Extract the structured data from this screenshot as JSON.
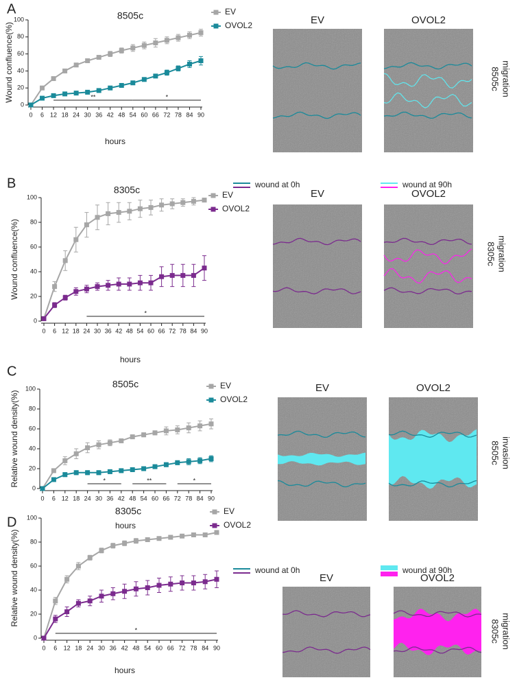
{
  "chart_data": [
    {
      "type": "line",
      "panel": "A",
      "title": "8505c",
      "x_label": "hours",
      "y_label": "Wound confluence(%)",
      "x": [
        0,
        6,
        12,
        18,
        24,
        30,
        36,
        42,
        48,
        54,
        60,
        66,
        72,
        78,
        84,
        90
      ],
      "xlim": [
        0,
        90
      ],
      "xticks": [
        0,
        6,
        12,
        18,
        24,
        30,
        36,
        42,
        48,
        54,
        60,
        66,
        72,
        78,
        84,
        90
      ],
      "ylim": [
        0,
        100
      ],
      "yticks": [
        0,
        20,
        40,
        60,
        80,
        100
      ],
      "series": [
        {
          "name": "EV",
          "color": "#a6a6a6",
          "values": [
            0,
            20,
            31,
            40,
            47,
            52,
            56,
            60,
            64,
            67,
            70,
            73,
            76,
            79,
            82,
            85
          ],
          "errors": [
            0,
            1,
            1,
            1,
            2,
            2,
            2,
            3,
            3,
            4,
            4,
            5,
            4,
            4,
            4,
            4
          ]
        },
        {
          "name": "OVOL2",
          "color": "#1a8a9a",
          "values": [
            0,
            8,
            11,
            13,
            14,
            15,
            17,
            20,
            23,
            26,
            30,
            34,
            38,
            43,
            48,
            52
          ],
          "errors": [
            0,
            1,
            1,
            1,
            1,
            1,
            1,
            1,
            1,
            1,
            2,
            2,
            3,
            3,
            4,
            5
          ]
        }
      ],
      "annotations": [
        {
          "text": "**",
          "x": [
            12,
            54
          ]
        },
        {
          "text": "*",
          "x": [
            54,
            90
          ]
        }
      ],
      "images": {
        "labels": [
          "EV",
          "OVOL2"
        ],
        "label_colors": [
          "#a6a6a6",
          "#1a8a9a"
        ],
        "side_label": [
          "8505c",
          "migration"
        ]
      }
    },
    {
      "type": "line",
      "panel": "B",
      "title": "8305c",
      "x_label": "hours",
      "y_label": "Wound confluence(%)",
      "x": [
        0,
        6,
        12,
        18,
        24,
        30,
        36,
        42,
        48,
        54,
        60,
        66,
        72,
        78,
        84,
        90
      ],
      "xlim": [
        0,
        90
      ],
      "xticks": [
        0,
        6,
        12,
        18,
        24,
        30,
        36,
        42,
        48,
        54,
        60,
        66,
        72,
        78,
        84,
        90
      ],
      "ylim": [
        0,
        100
      ],
      "yticks": [
        0,
        20,
        40,
        60,
        80,
        100
      ],
      "series": [
        {
          "name": "EV",
          "color": "#a6a6a6",
          "values": [
            2,
            28,
            49,
            66,
            78,
            84,
            87,
            88,
            89,
            91,
            92,
            94,
            95,
            96,
            97,
            98
          ],
          "errors": [
            1,
            4,
            8,
            10,
            10,
            10,
            9,
            8,
            7,
            7,
            6,
            5,
            4,
            3,
            3,
            1
          ]
        },
        {
          "name": "OVOL2",
          "color": "#7b2b8e",
          "values": [
            2,
            13,
            19,
            24,
            26,
            28,
            29,
            30,
            30,
            31,
            31,
            36,
            37,
            37,
            37,
            43
          ],
          "errors": [
            1,
            2,
            2,
            3,
            3,
            3,
            4,
            5,
            5,
            6,
            6,
            8,
            9,
            9,
            9,
            10
          ]
        }
      ],
      "annotations": [
        {
          "text": "*",
          "x": [
            24,
            90
          ]
        }
      ],
      "images": {
        "labels": [
          "EV",
          "OVOL2"
        ],
        "label_colors": [
          "#a6a6a6",
          "#7b2b8e"
        ],
        "side_label": [
          "8305c",
          "migration"
        ]
      }
    },
    {
      "type": "line",
      "panel": "C",
      "title": "8505c",
      "x_label": "hours",
      "y_label": "Relative wound density(%)",
      "x": [
        0,
        6,
        12,
        18,
        24,
        30,
        36,
        42,
        48,
        54,
        60,
        66,
        72,
        78,
        84,
        90
      ],
      "xlim": [
        0,
        90
      ],
      "xticks": [
        0,
        6,
        12,
        18,
        24,
        30,
        36,
        42,
        48,
        54,
        60,
        66,
        72,
        78,
        84,
        90
      ],
      "ylim": [
        0,
        100
      ],
      "yticks": [
        0,
        20,
        40,
        60,
        80,
        100
      ],
      "series": [
        {
          "name": "EV",
          "color": "#a6a6a6",
          "values": [
            0,
            18,
            28,
            35,
            41,
            44,
            46,
            48,
            52,
            54,
            56,
            58,
            59,
            61,
            63,
            65
          ],
          "errors": [
            0,
            2,
            4,
            5,
            5,
            4,
            3,
            2,
            2,
            2,
            2,
            4,
            4,
            5,
            5,
            5
          ]
        },
        {
          "name": "OVOL2",
          "color": "#1a8a9a",
          "values": [
            0,
            9,
            14,
            16,
            16,
            16,
            17,
            18,
            19,
            20,
            22,
            24,
            26,
            27,
            28,
            30
          ],
          "errors": [
            0,
            1,
            2,
            2,
            2,
            2,
            2,
            2,
            2,
            2,
            2,
            2,
            2,
            3,
            3,
            3
          ]
        }
      ],
      "annotations": [
        {
          "text": "*",
          "x": [
            24,
            42
          ]
        },
        {
          "text": "**",
          "x": [
            48,
            66
          ]
        },
        {
          "text": "*",
          "x": [
            72,
            90
          ]
        }
      ],
      "images": {
        "labels": [
          "EV",
          "OVOL2"
        ],
        "label_colors": [
          "#a6a6a6",
          "#1a8a9a"
        ],
        "side_label": [
          "8505c",
          "invasion"
        ]
      }
    },
    {
      "type": "line",
      "panel": "D",
      "title": "8305c",
      "x_label": "hours",
      "y_label": "Relative wound density(%)",
      "x": [
        0,
        6,
        12,
        18,
        24,
        30,
        36,
        42,
        48,
        54,
        60,
        66,
        72,
        78,
        84,
        90
      ],
      "xlim": [
        0,
        90
      ],
      "xticks": [
        0,
        6,
        12,
        18,
        24,
        30,
        36,
        42,
        48,
        54,
        60,
        66,
        72,
        78,
        84,
        90
      ],
      "ylim": [
        0,
        100
      ],
      "yticks": [
        0,
        20,
        40,
        60,
        80,
        100
      ],
      "series": [
        {
          "name": "EV",
          "color": "#a6a6a6",
          "values": [
            0,
            31,
            49,
            60,
            67,
            73,
            77,
            79,
            81,
            82,
            83,
            84,
            85,
            86,
            86,
            88
          ],
          "errors": [
            0,
            3,
            3,
            3,
            2,
            2,
            2,
            2,
            2,
            1,
            1,
            1,
            1,
            1,
            1,
            1
          ]
        },
        {
          "name": "OVOL2",
          "color": "#7b2b8e",
          "values": [
            0,
            16,
            22,
            29,
            31,
            35,
            37,
            39,
            41,
            42,
            44,
            45,
            46,
            46,
            47,
            49
          ],
          "errors": [
            0,
            3,
            4,
            3,
            4,
            5,
            5,
            6,
            6,
            6,
            6,
            6,
            6,
            6,
            6,
            7
          ]
        }
      ],
      "annotations": [
        {
          "text": "*",
          "x": [
            6,
            90
          ]
        }
      ],
      "images": {
        "labels": [
          "EV",
          "OVOL2"
        ],
        "label_colors": [
          "#a6a6a6",
          "#7b2b8e"
        ],
        "side_label": [
          "8305c",
          "migration"
        ]
      }
    }
  ],
  "wound_legends": [
    [
      "wound at 0h",
      "wound at 90h"
    ],
    [
      "wound at 0h",
      "wound at 90h"
    ]
  ]
}
